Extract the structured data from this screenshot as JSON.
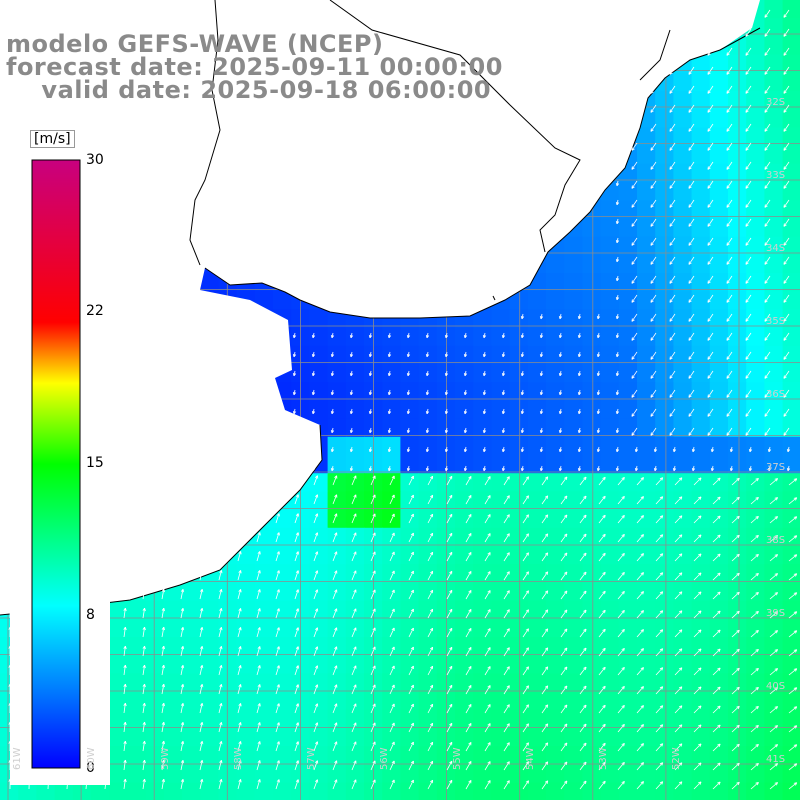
{
  "title": {
    "line1": "modelo GEFS-WAVE (NCEP)",
    "line2": "forecast date: 2025-09-11 00:00:00",
    "line3": "    valid date: 2025-09-18 06:00:00"
  },
  "colorbar": {
    "unit": "[m/s]",
    "ticks": [
      "30",
      "22",
      "15",
      "8",
      "0"
    ],
    "min": 0,
    "max": 30,
    "colors": [
      "#0000ff",
      "#00ffff",
      "#00ff00",
      "#ffff00",
      "#ff0000",
      "#c8007f"
    ]
  },
  "map": {
    "variable": "wind speed",
    "grid_on": true,
    "land_color": "#ffffff",
    "coastline_color": "#000000",
    "arrow_color": "#ffffff",
    "lat_labels": [
      "32S",
      "33S",
      "34S",
      "35S",
      "36S",
      "37S",
      "38S",
      "39S",
      "40S",
      "41S"
    ],
    "lon_labels": [
      "61W",
      "60W",
      "59W",
      "58W",
      "57W",
      "56W",
      "55W",
      "54W",
      "53W",
      "52W"
    ]
  }
}
